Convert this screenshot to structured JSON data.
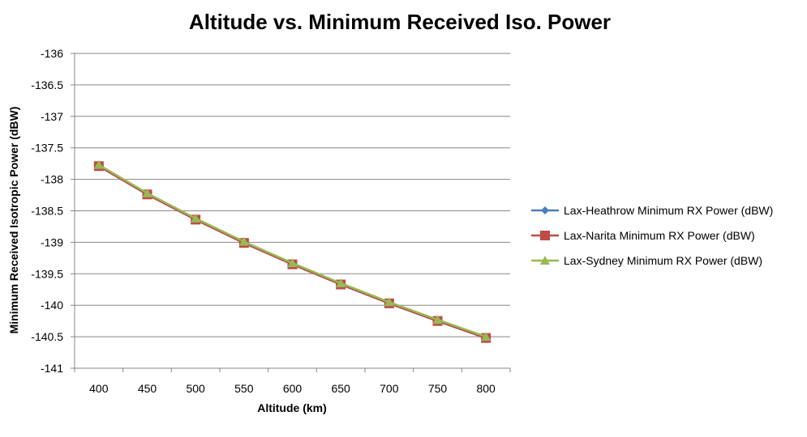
{
  "chart_data": {
    "type": "line",
    "title": "Altitude vs. Minimum Received Iso. Power",
    "xlabel": "Altitude (km)",
    "ylabel": "Minimum Received Isotropic Power (dBW)",
    "categories": [
      "400",
      "450",
      "500",
      "550",
      "600",
      "650",
      "700",
      "750",
      "800"
    ],
    "ylim": [
      -141,
      -136
    ],
    "yticks": [
      "-136",
      "-136.5",
      "-137",
      "-137.5",
      "-138",
      "-138.5",
      "-139",
      "-139.5",
      "-140",
      "-140.5",
      "-141"
    ],
    "grid": true,
    "legend_position": "right",
    "series": [
      {
        "name": "Lax-Heathrow Minimum RX Power (dBW)",
        "color": "#4a7ebb",
        "marker": "diamond",
        "values": [
          -137.79,
          -138.24,
          -138.64,
          -139.01,
          -139.35,
          -139.67,
          -139.97,
          -140.25,
          -140.52
        ]
      },
      {
        "name": "Lax-Narita Minimum RX Power (dBW)",
        "color": "#be4b48",
        "marker": "square",
        "values": [
          -137.79,
          -138.24,
          -138.64,
          -139.01,
          -139.35,
          -139.67,
          -139.97,
          -140.25,
          -140.52
        ]
      },
      {
        "name": "Lax-Sydney Minimum RX Power (dBW)",
        "color": "#98b954",
        "marker": "triangle",
        "values": [
          -137.77,
          -138.22,
          -138.62,
          -138.99,
          -139.33,
          -139.65,
          -139.95,
          -140.23,
          -140.5
        ]
      }
    ]
  }
}
